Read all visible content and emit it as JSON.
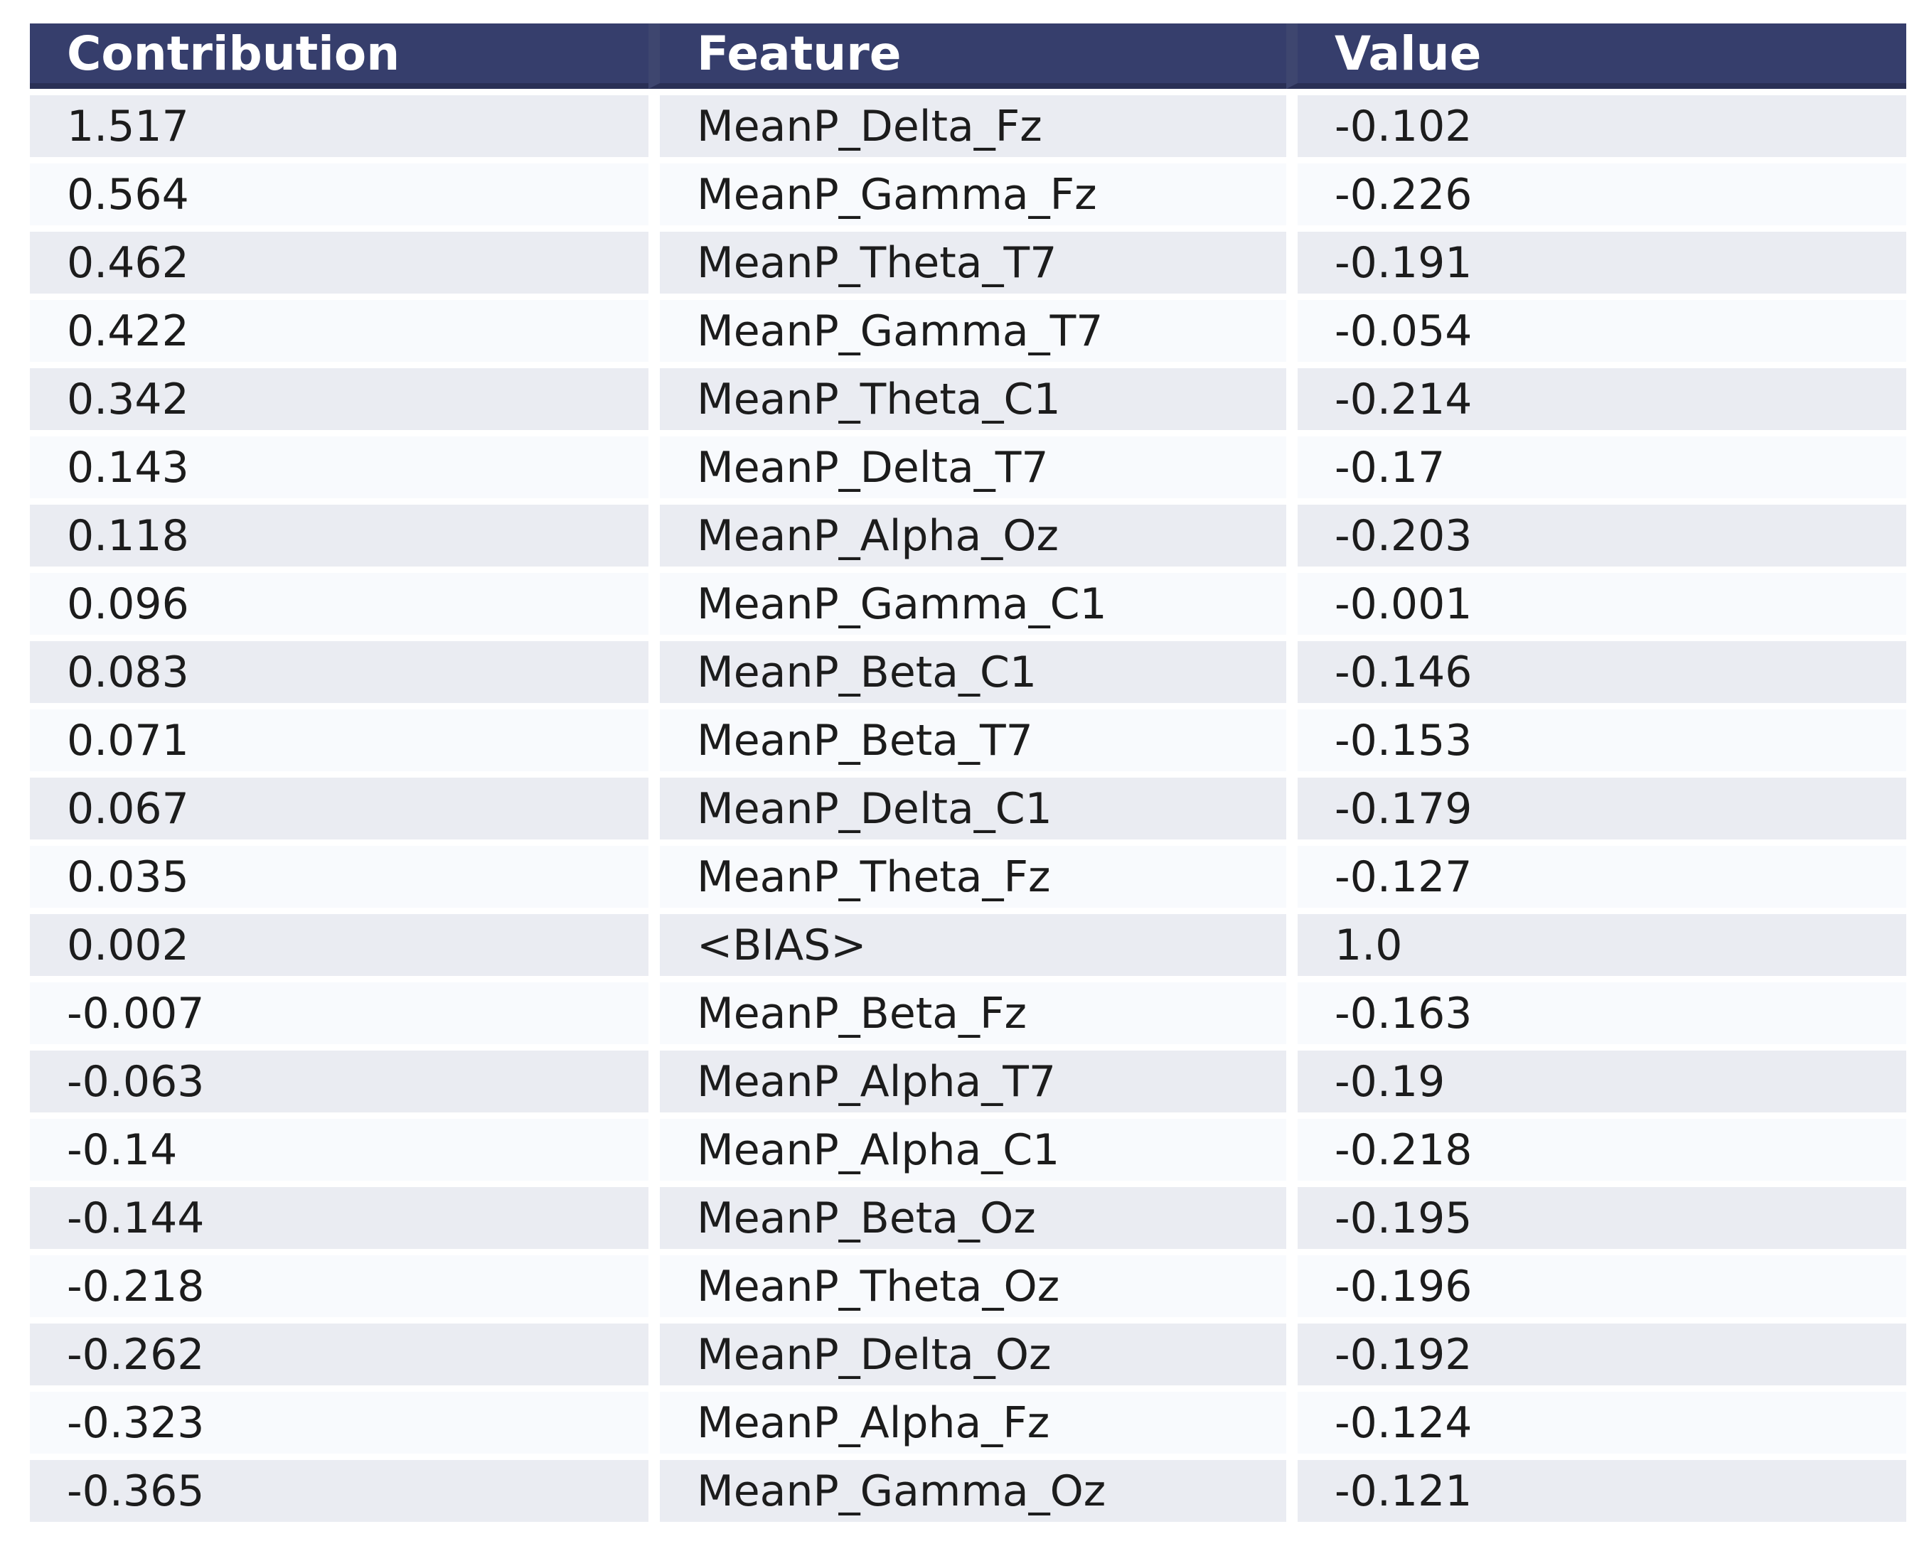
{
  "chart_data": {
    "type": "table",
    "columns": [
      "Contribution",
      "Feature",
      "Value"
    ],
    "rows": [
      [
        "1.517",
        "MeanP_Delta_Fz",
        "-0.102"
      ],
      [
        "0.564",
        "MeanP_Gamma_Fz",
        "-0.226"
      ],
      [
        "0.462",
        "MeanP_Theta_T7",
        "-0.191"
      ],
      [
        "0.422",
        "MeanP_Gamma_T7",
        "-0.054"
      ],
      [
        "0.342",
        "MeanP_Theta_C1",
        "-0.214"
      ],
      [
        "0.143",
        "MeanP_Delta_T7",
        "-0.17"
      ],
      [
        "0.118",
        "MeanP_Alpha_Oz",
        "-0.203"
      ],
      [
        "0.096",
        "MeanP_Gamma_C1",
        "-0.001"
      ],
      [
        "0.083",
        "MeanP_Beta_C1",
        "-0.146"
      ],
      [
        "0.071",
        "MeanP_Beta_T7",
        "-0.153"
      ],
      [
        "0.067",
        "MeanP_Delta_C1",
        "-0.179"
      ],
      [
        "0.035",
        "MeanP_Theta_Fz",
        "-0.127"
      ],
      [
        "0.002",
        "<BIAS>",
        "1.0"
      ],
      [
        "-0.007",
        "MeanP_Beta_Fz",
        "-0.163"
      ],
      [
        "-0.063",
        "MeanP_Alpha_T7",
        "-0.19"
      ],
      [
        "-0.14",
        "MeanP_Alpha_C1",
        "-0.218"
      ],
      [
        "-0.144",
        "MeanP_Beta_Oz",
        "-0.195"
      ],
      [
        "-0.218",
        "MeanP_Theta_Oz",
        "-0.196"
      ],
      [
        "-0.262",
        "MeanP_Delta_Oz",
        "-0.192"
      ],
      [
        "-0.323",
        "MeanP_Alpha_Fz",
        "-0.124"
      ],
      [
        "-0.365",
        "MeanP_Gamma_Oz",
        "-0.121"
      ]
    ],
    "layout": {
      "legend": "none",
      "grid": "row-striping",
      "header_position": "top"
    },
    "colors": {
      "header_bg": "#363E6C",
      "header_border_bottom": "#2A3056",
      "header_text": "#FFFFFF",
      "row_alt_bg": "#EAECF2",
      "row_bg": "#F8FAFD",
      "row_gap": "#FFFFFF",
      "body_text": "#1C1C1C",
      "page_bg": "#FFFFFF"
    }
  }
}
